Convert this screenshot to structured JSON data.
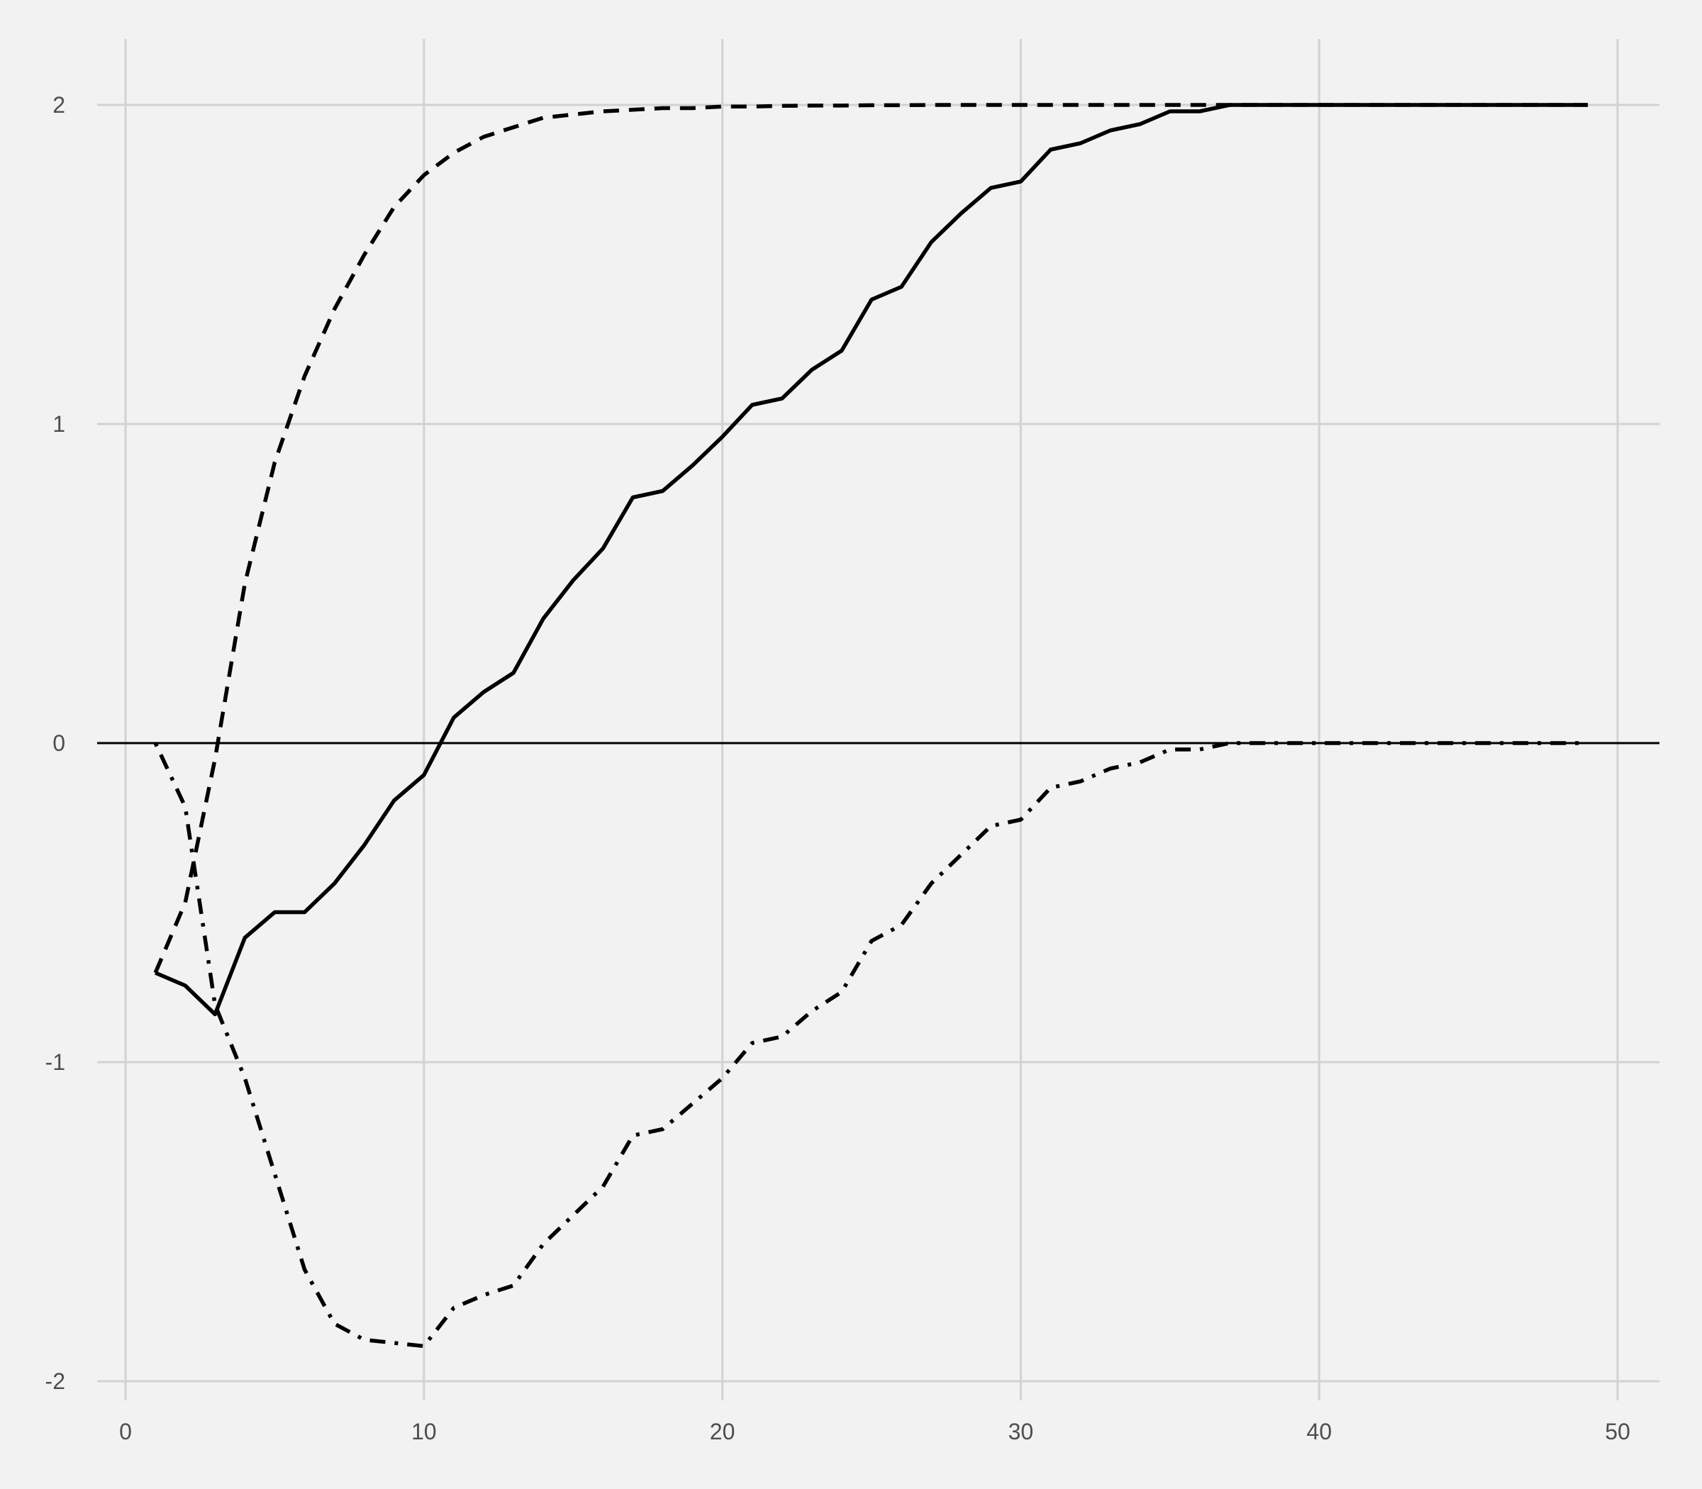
{
  "chart_data": {
    "type": "line",
    "title": "",
    "xlabel": "",
    "ylabel": "",
    "xlim": [
      0,
      50
    ],
    "ylim": [
      -2,
      2
    ],
    "x_ticks": [
      0,
      10,
      20,
      30,
      40,
      50
    ],
    "y_ticks": [
      -2,
      -1,
      0,
      1,
      2
    ],
    "x_tick_labels": [
      "0",
      "10",
      "20",
      "30",
      "40",
      "50"
    ],
    "y_tick_labels": [
      "-2",
      "-1",
      "0",
      "1",
      "2"
    ],
    "grid": true,
    "background": "#f2f2f2",
    "grid_color": "#d2d2d2",
    "line_color": "#000000",
    "reference_line": {
      "y": 0
    },
    "series": [
      {
        "style": "solid",
        "x": [
          1,
          2,
          3,
          4,
          5,
          6,
          7,
          8,
          9,
          10,
          11,
          12,
          13,
          14,
          15,
          16,
          17,
          18,
          19,
          20,
          21,
          22,
          23,
          24,
          25,
          26,
          27,
          28,
          29,
          30,
          31,
          32,
          33,
          34,
          35,
          36,
          37,
          38,
          39,
          40,
          41,
          42,
          43,
          44,
          45,
          46,
          47,
          48,
          49
        ],
        "values": [
          -0.72,
          -0.76,
          -0.85,
          -0.61,
          -0.53,
          -0.53,
          -0.44,
          -0.32,
          -0.18,
          -0.1,
          0.08,
          0.16,
          0.22,
          0.39,
          0.51,
          0.61,
          0.77,
          0.79,
          0.87,
          0.96,
          1.06,
          1.08,
          1.17,
          1.23,
          1.39,
          1.43,
          1.57,
          1.66,
          1.74,
          1.76,
          1.86,
          1.88,
          1.92,
          1.94,
          1.98,
          1.98,
          2.0,
          2.0,
          2.0,
          2.0,
          2.0,
          2.0,
          2.0,
          2.0,
          2.0,
          2.0,
          2.0,
          2.0,
          2.0
        ]
      },
      {
        "style": "dashed",
        "x": [
          1,
          2,
          3,
          4,
          5,
          6,
          7,
          8,
          9,
          10,
          11,
          12,
          13,
          14,
          15,
          16,
          17,
          18,
          19,
          20,
          21,
          22,
          23,
          24,
          25,
          26,
          27,
          28,
          29,
          30,
          31,
          32,
          33,
          34,
          35,
          36,
          37,
          38,
          39,
          40,
          41,
          42,
          43,
          44,
          45,
          46,
          47,
          48,
          49
        ],
        "values": [
          -0.72,
          -0.5,
          -0.05,
          0.5,
          0.88,
          1.15,
          1.36,
          1.53,
          1.68,
          1.78,
          1.85,
          1.9,
          1.93,
          1.96,
          1.97,
          1.98,
          1.985,
          1.99,
          1.99,
          1.995,
          1.995,
          1.997,
          1.998,
          1.998,
          1.999,
          1.999,
          2.0,
          2.0,
          2.0,
          2.0,
          2.0,
          2.0,
          2.0,
          2.0,
          2.0,
          2.0,
          2.0,
          2.0,
          2.0,
          2.0,
          2.0,
          2.0,
          2.0,
          2.0,
          2.0,
          2.0,
          2.0,
          2.0,
          2.0
        ]
      },
      {
        "style": "dot-dash",
        "x": [
          1,
          2,
          3,
          4,
          5,
          6,
          7,
          8,
          9,
          10,
          11,
          12,
          13,
          14,
          15,
          16,
          17,
          18,
          19,
          20,
          21,
          22,
          23,
          24,
          25,
          26,
          27,
          28,
          29,
          30,
          31,
          32,
          33,
          34,
          35,
          36,
          37,
          38,
          39,
          40,
          41,
          42,
          43,
          44,
          45,
          46,
          47,
          48,
          49
        ],
        "values": [
          0.0,
          -0.2,
          -0.82,
          -1.05,
          -1.35,
          -1.65,
          -1.82,
          -1.87,
          -1.88,
          -1.89,
          -1.77,
          -1.73,
          -1.7,
          -1.57,
          -1.48,
          -1.39,
          -1.23,
          -1.21,
          -1.13,
          -1.05,
          -0.94,
          -0.92,
          -0.84,
          -0.78,
          -0.62,
          -0.57,
          -0.44,
          -0.35,
          -0.26,
          -0.24,
          -0.14,
          -0.12,
          -0.08,
          -0.06,
          -0.02,
          -0.02,
          0.0,
          0.0,
          0.0,
          0.0,
          0.0,
          0.0,
          0.0,
          0.0,
          0.0,
          0.0,
          0.0,
          0.0,
          0.0
        ]
      }
    ]
  }
}
